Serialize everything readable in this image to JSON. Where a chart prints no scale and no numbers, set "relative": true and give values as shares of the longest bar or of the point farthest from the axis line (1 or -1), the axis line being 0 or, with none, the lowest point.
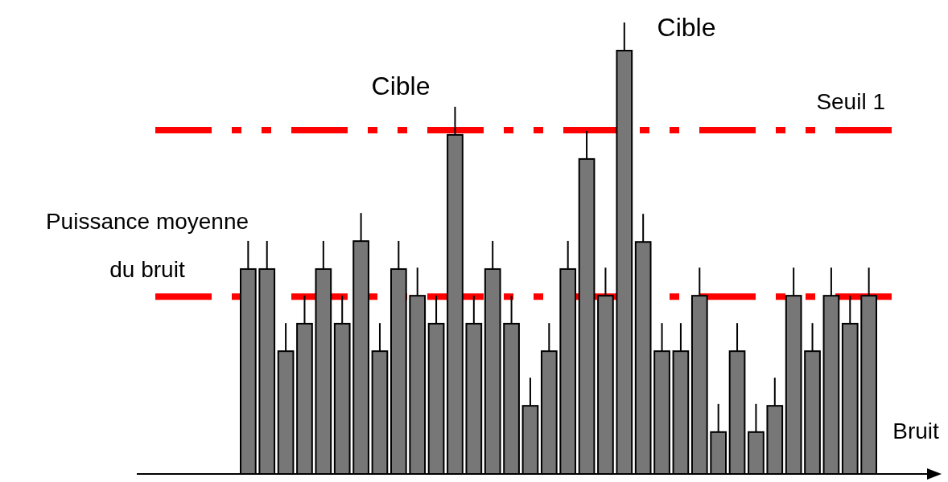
{
  "chart_data": {
    "type": "bar",
    "relative": true,
    "xlabel": "Bruit",
    "color": "#777777",
    "categories": [
      null,
      null,
      null,
      null,
      null,
      null,
      null,
      null,
      null,
      null,
      null,
      null,
      null,
      null,
      null,
      null,
      null,
      null,
      null,
      null,
      null,
      null,
      null,
      null,
      null,
      null,
      null,
      null,
      null,
      null,
      null,
      null,
      null,
      null
    ],
    "values": [
      0.484,
      0.484,
      0.29,
      0.355,
      0.484,
      0.355,
      0.55,
      0.29,
      0.484,
      0.421,
      0.355,
      0.801,
      0.355,
      0.484,
      0.355,
      0.161,
      0.29,
      0.484,
      0.744,
      0.421,
      1,
      0.548,
      0.29,
      0.29,
      0.421,
      0.099,
      0.29,
      0.099,
      0.161,
      0.421,
      0.29,
      0.421,
      0.355,
      0.421
    ],
    "ref_lines": [
      {
        "axis": "y",
        "value": 0.812,
        "label": "Seuil 1",
        "color": "#ff0000"
      },
      {
        "axis": "y",
        "value": 0.419,
        "label": "Puissance moyenne du bruit",
        "color": "#ff0000"
      }
    ],
    "annotations": [
      "Cible",
      "Cible"
    ]
  }
}
